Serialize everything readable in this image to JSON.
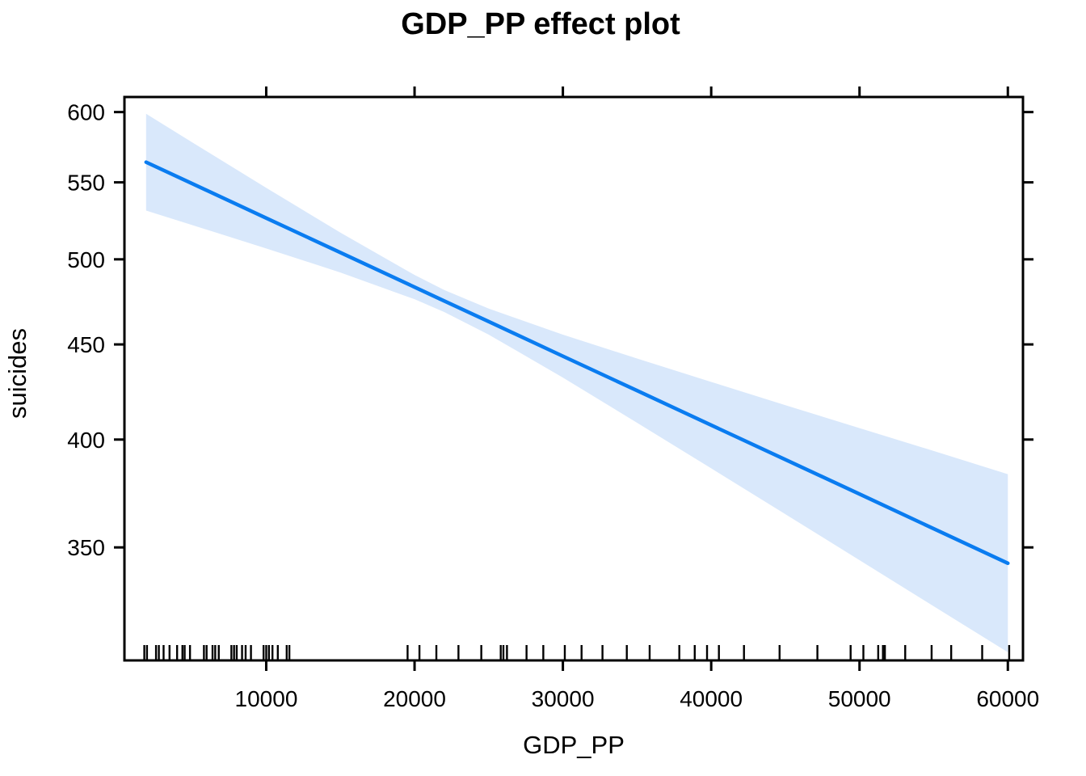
{
  "chart_data": {
    "type": "line",
    "title": "GDP_PP effect plot",
    "xlabel": "GDP_PP",
    "ylabel": "suicides",
    "y_scale": "log",
    "grid": false,
    "legend": "none",
    "xlim": [
      440,
      61020
    ],
    "ylim": [
      304.3,
      611.3
    ],
    "x_ticks": {
      "values": [
        10000,
        20000,
        30000,
        40000,
        50000,
        60000
      ],
      "labels": [
        "10000",
        "20000",
        "30000",
        "40000",
        "50000",
        "60000"
      ]
    },
    "y_ticks": {
      "values": [
        350,
        400,
        450,
        500,
        550,
        600
      ],
      "labels": [
        "350",
        "400",
        "450",
        "500",
        "550",
        "600"
      ]
    },
    "x": [
      1900,
      5000,
      10000,
      15000,
      20000,
      22000,
      25000,
      30000,
      35000,
      40000,
      45000,
      50000,
      55000,
      60000
    ],
    "series": [
      {
        "name": "fitted effect",
        "y": [
          563.9,
          549.2,
          526.2,
          504.2,
          483.1,
          474.9,
          462.9,
          443.5,
          425.0,
          407.2,
          390.2,
          373.9,
          358.2,
          343.2
        ]
      },
      {
        "name": "upper 95% confidence limit",
        "y": [
          598.7,
          578.0,
          546.3,
          516.8,
          490.4,
          481.4,
          470.4,
          455.5,
          442.2,
          429.6,
          417.4,
          405.7,
          394.4,
          383.2
        ]
      },
      {
        "name": "lower 95% confidence limit",
        "y": [
          531.1,
          521.7,
          506.8,
          491.9,
          475.9,
          468.4,
          455.5,
          431.9,
          408.4,
          386.0,
          364.7,
          344.5,
          325.4,
          307.4
        ]
      }
    ],
    "rug_x": [
      1780,
      1960,
      2570,
      2760,
      3080,
      3480,
      3990,
      4350,
      4500,
      4860,
      5800,
      5980,
      6380,
      6560,
      6800,
      7650,
      7830,
      8010,
      8370,
      8610,
      8970,
      9820,
      10000,
      10180,
      10420,
      10780,
      11380,
      11560,
      19530,
      20330,
      21470,
      22960,
      24500,
      25810,
      25990,
      26230,
      27550,
      28680,
      30130,
      31260,
      32670,
      34310,
      35850,
      37850,
      38890,
      39720,
      40520,
      42210,
      44610,
      47160,
      49400,
      50260,
      51260,
      51580,
      51710,
      53080,
      54860,
      56180,
      58270,
      60090
    ],
    "colors": {
      "line": "#0a7cf0",
      "band": "#d9e8fb",
      "axis": "#000000",
      "background": "#ffffff"
    }
  }
}
